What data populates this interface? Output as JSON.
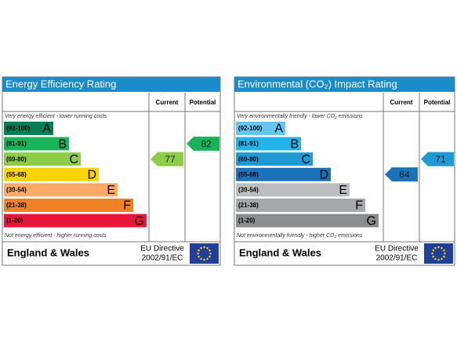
{
  "panels": [
    {
      "title": "Energy Efficiency Rating",
      "columns": [
        "Current",
        "Potential"
      ],
      "top_note": "Very energy efficient - lower running costs",
      "bottom_note": "Not energy efficient - higher running costs",
      "bands": [
        {
          "range": "(92-100)",
          "letter": "A",
          "color": "#008054"
        },
        {
          "range": "(81-91)",
          "letter": "B",
          "color": "#19b459"
        },
        {
          "range": "(69-80)",
          "letter": "C",
          "color": "#8dce46"
        },
        {
          "range": "(55-68)",
          "letter": "D",
          "color": "#ffd500"
        },
        {
          "range": "(39-54)",
          "letter": "E",
          "color": "#fcaa65"
        },
        {
          "range": "(21-38)",
          "letter": "F",
          "color": "#ef8023"
        },
        {
          "range": "(1-20)",
          "letter": "G",
          "color": "#e9153b"
        }
      ],
      "current": 77,
      "potential": 82,
      "region": "England & Wales",
      "directive": [
        "EU Directive",
        "2002/91/EC"
      ]
    },
    {
      "title": "Environmental (CO₂) Impact Rating",
      "columns": [
        "Current",
        "Potential"
      ],
      "top_note": "Very environmentally friendly - lower CO₂ emissions",
      "bottom_note": "Not environmentally friendly - higher CO₂ emissions",
      "bands": [
        {
          "range": "(92-100)",
          "letter": "A",
          "color": "#63c5f0"
        },
        {
          "range": "(81-91)",
          "letter": "B",
          "color": "#22b5ec"
        },
        {
          "range": "(69-80)",
          "letter": "C",
          "color": "#1d9ad6"
        },
        {
          "range": "(55-68)",
          "letter": "D",
          "color": "#1a73ba"
        },
        {
          "range": "(39-54)",
          "letter": "E",
          "color": "#bbbdbf"
        },
        {
          "range": "(21-38)",
          "letter": "F",
          "color": "#a5a7aa"
        },
        {
          "range": "(1-20)",
          "letter": "G",
          "color": "#8a8c8e"
        }
      ],
      "current": 64,
      "potential": 71,
      "region": "England & Wales",
      "directive": [
        "EU Directive",
        "2002/91/EC"
      ]
    }
  ]
}
